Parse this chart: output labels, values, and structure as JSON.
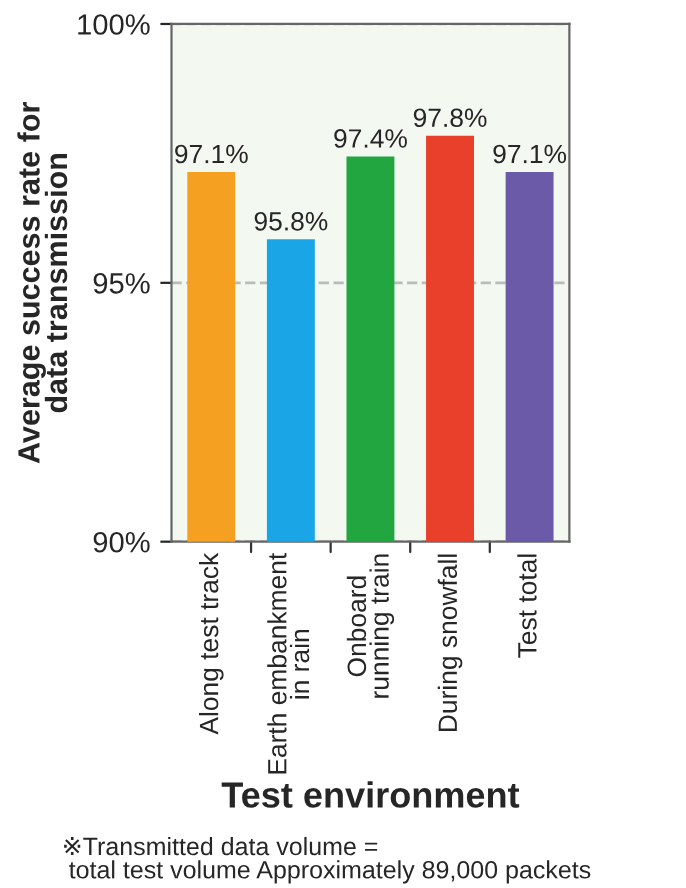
{
  "chart_data": {
    "type": "bar",
    "xlabel": "Test environment",
    "ylabel": "Average success rate for\ndata transmission",
    "categories": [
      "Along test track",
      "Earth embankment\nin rain",
      "Onboard\nrunning train",
      "During snowfall",
      "Test total"
    ],
    "values": [
      97.1,
      95.8,
      97.4,
      97.8,
      97.1
    ],
    "colors": [
      "#f5a020",
      "#1aa6e6",
      "#22a640",
      "#e8402a",
      "#6a5aa8"
    ],
    "value_labels": [
      "97.1%",
      "95.8%",
      "97.4%",
      "97.8%",
      "97.1%"
    ],
    "ylim": [
      90,
      100
    ],
    "yticks": [
      {
        "value": 90,
        "label": "90%"
      },
      {
        "value": 95,
        "label": "95%"
      },
      {
        "value": 100,
        "label": "100%"
      }
    ],
    "grid": "y",
    "annotations": [
      "※Transmitted data volume =\n total test volume Approximately 89,000 packets"
    ]
  }
}
